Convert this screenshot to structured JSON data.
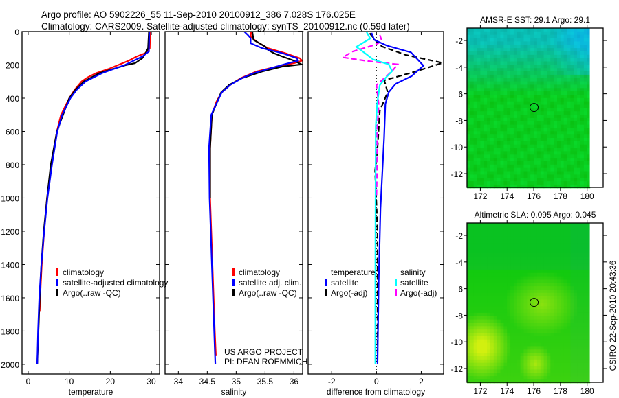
{
  "header": {
    "line1": "Argo profile: AO 5902226_55 11-Sep-2010 20100912_386 7.028S 176.025E",
    "line2": "Climatology: CARS2009. Satellite-adjusted climatology: synTS_20100912.nc (0.59d later)"
  },
  "credit": {
    "line1": "US ARGO PROJECT",
    "line2": "PI: DEAN ROEMMICH"
  },
  "stamp": "CSIRO 22-Sep-2010 20:43:36",
  "colors": {
    "climatology": "#ff0000",
    "satellite": "#0000ff",
    "argo": "#000000",
    "sal_satellite": "#00ffff",
    "sal_argo": "#ff00ff"
  },
  "chart_data": [
    {
      "type": "line",
      "id": "temperature",
      "xlabel": "temperature",
      "ylabel": "",
      "xlim": [
        -1.5,
        32
      ],
      "ylim": [
        2058,
        0
      ],
      "xticks": [
        0,
        10,
        20,
        30
      ],
      "xtick_labels": [
        "0",
        "10",
        "20",
        "30"
      ],
      "yticks": [
        0,
        200,
        400,
        600,
        800,
        1000,
        1200,
        1400,
        1600,
        1800,
        2000
      ],
      "ytick_labels": [
        "0",
        "200",
        "400",
        "600",
        "800",
        "1000",
        "1200",
        "1400",
        "1600",
        "1800",
        "2000"
      ],
      "legend": [
        "climatology",
        "satellite-adjusted climatology",
        "Argo(..raw -QC)"
      ],
      "series": [
        {
          "name": "climatology",
          "color": "#ff0000",
          "depth": [
            0,
            100,
            130,
            150,
            175,
            200,
            225,
            250,
            275,
            300,
            350,
            400,
            500,
            600,
            700,
            800,
            1000,
            1200,
            1400,
            1600,
            1680
          ],
          "values": [
            29.7,
            29.6,
            28.5,
            26.4,
            24.5,
            22,
            19.5,
            16.5,
            14.5,
            13,
            11.3,
            10,
            8,
            7,
            6.3,
            5.6,
            4.6,
            3.9,
            3.3,
            2.9,
            2.8
          ]
        },
        {
          "name": "Argo(..raw -QC)",
          "color": "#000000",
          "depth": [
            0,
            100,
            130,
            160,
            190,
            200,
            250,
            300,
            350,
            400,
            600,
            800,
            1000,
            1200,
            1400,
            1600,
            1800,
            2000
          ],
          "values": [
            29.4,
            29.2,
            28.6,
            27.8,
            26,
            24,
            17.3,
            13.6,
            11.5,
            10,
            7,
            5.5,
            4.6,
            3.8,
            3.2,
            2.8,
            2.5,
            2.2
          ]
        },
        {
          "name": "satellite-adjusted climatology",
          "color": "#0000ff",
          "depth": [
            0,
            120,
            150,
            200,
            250,
            300,
            350,
            400,
            500,
            600,
            800,
            1000,
            1200,
            1400,
            1600,
            1800,
            2000
          ],
          "values": [
            29.5,
            29.4,
            27.8,
            23.6,
            18,
            14,
            11.8,
            10.3,
            8.3,
            7.1,
            5.8,
            4.7,
            3.9,
            3.2,
            2.7,
            2.4,
            2.2
          ]
        }
      ]
    },
    {
      "type": "line",
      "id": "salinity",
      "xlabel": "salinity",
      "xlim": [
        33.77,
        36.15
      ],
      "ylim": [
        2058,
        0
      ],
      "xticks": [
        34,
        34.5,
        35,
        35.5,
        36
      ],
      "xtick_labels": [
        "34",
        "34.5",
        "35",
        "35.5",
        "36"
      ],
      "legend": [
        "climatology",
        "satellite adj. clim.",
        "Argo(..raw -QC)"
      ],
      "series": [
        {
          "name": "climatology",
          "color": "#ff0000",
          "depth": [
            0,
            30,
            60,
            100,
            130,
            160,
            175,
            190,
            210,
            240,
            280,
            320,
            365,
            420,
            500,
            700,
            1000,
            1200,
            1400,
            1600,
            1800,
            1950
          ],
          "values": [
            35.26,
            35.25,
            35.35,
            35.55,
            35.85,
            36.1,
            36.14,
            36.0,
            35.7,
            35.35,
            35.08,
            34.9,
            34.75,
            34.66,
            34.58,
            34.55,
            34.55,
            34.57,
            34.59,
            34.61,
            34.63,
            34.65
          ]
        },
        {
          "name": "Argo(..raw -QC)",
          "color": "#000000",
          "depth": [
            0,
            50,
            90,
            110,
            130,
            150,
            175,
            197,
            210,
            240,
            280,
            320,
            365,
            500,
            700,
            1000
          ],
          "values": [
            35.28,
            35.3,
            35.5,
            35.55,
            35.65,
            35.8,
            36.0,
            36.13,
            35.8,
            35.45,
            35.1,
            34.88,
            34.74,
            34.58,
            34.55,
            34.55
          ]
        },
        {
          "name": "satellite adj. clim.",
          "color": "#0000ff",
          "depth": [
            0,
            20,
            40,
            70,
            100,
            130,
            160,
            175,
            195,
            220,
            250,
            280,
            320,
            365,
            500,
            700,
            1000,
            1200,
            1500,
            1800,
            2000
          ],
          "values": [
            35.14,
            35.2,
            35.25,
            35.25,
            35.45,
            35.8,
            36.05,
            36.07,
            35.85,
            35.6,
            35.3,
            35.1,
            34.9,
            34.75,
            34.57,
            34.53,
            34.54,
            34.56,
            34.59,
            34.62,
            34.64
          ]
        }
      ]
    },
    {
      "type": "line",
      "id": "difference",
      "xlabel": "difference from climatology",
      "xlim": [
        -3.05,
        3.0
      ],
      "ylim": [
        2058,
        0
      ],
      "xticks": [
        -2,
        0,
        2
      ],
      "xtick_labels": [
        "-2",
        "0",
        "2"
      ],
      "legend_groups": [
        {
          "title": "temperature",
          "items": [
            "satellite",
            "Argo(-adj)"
          ]
        },
        {
          "title": "salinity",
          "items": [
            "satellite",
            "Argo(-adj)"
          ]
        }
      ],
      "series": [
        {
          "name": "temperature Argo(-adj)",
          "color": "#000000",
          "dashed": true,
          "depth": [
            10,
            60,
            90,
            140,
            188,
            238,
            293,
            364,
            477,
            700,
            837,
            1200,
            1600,
            2000
          ],
          "values": [
            -0.3,
            0.0,
            0.25,
            1.3,
            2.95,
            1.8,
            0.35,
            0.5,
            0.15,
            0.05,
            -0.06,
            0.05,
            0.05,
            0.05
          ]
        },
        {
          "name": "salinity Argo(-adj)",
          "color": "#ff00ff",
          "dashed": true,
          "depth": [
            21,
            58,
            79,
            121,
            155,
            176,
            197,
            238,
            322,
            435,
            600,
            782,
            1000
          ],
          "values": [
            0.15,
            0.25,
            -0.06,
            -1.08,
            -1.5,
            -0.45,
            0.95,
            0.7,
            0.0,
            0.1,
            0.03,
            0.03,
            0.0
          ]
        },
        {
          "name": "temperature satellite",
          "color": "#0000ff",
          "depth": [
            8,
            50,
            84,
            125,
            205,
            268,
            314,
            364,
            435,
            644,
            1063,
            1500,
            2000
          ],
          "values": [
            -0.22,
            -0.1,
            0.46,
            1.54,
            2.1,
            1.57,
            0.86,
            0.55,
            0.4,
            0.34,
            0.18,
            0.1,
            0.05
          ]
        },
        {
          "name": "salinity satellite",
          "color": "#00ffff",
          "depth": [
            0,
            42,
            92,
            113,
            167,
            197,
            238,
            280,
            322,
            435,
            573,
            1000,
            1500,
            2000
          ],
          "values": [
            -0.45,
            -0.28,
            -0.9,
            -0.68,
            -0.15,
            0.55,
            0.7,
            0.4,
            0.15,
            0.03,
            -0.03,
            -0.04,
            -0.05,
            -0.05
          ]
        }
      ]
    },
    {
      "type": "heatmap",
      "id": "sst-map",
      "title": "AMSR-E SST: 29.1 Argo: 29.1",
      "xlim": [
        171,
        181.2
      ],
      "ylim": [
        -13.03,
        -1.07
      ],
      "xticks": [
        172,
        174,
        176,
        178,
        180
      ],
      "xtick_labels": [
        "172",
        "174",
        "176",
        "178",
        "180"
      ],
      "yticks": [
        -2,
        -4,
        -6,
        -8,
        -10,
        -12
      ],
      "ytick_labels": [
        "-2",
        "-4",
        "-6",
        "-8",
        "-10",
        "-12"
      ],
      "argo_position": [
        176.025,
        -7.028
      ]
    },
    {
      "type": "heatmap",
      "id": "sla-map",
      "title": "Altimetric SLA: 0.095 Argo: 0.045",
      "xlim": [
        171,
        181.2
      ],
      "ylim": [
        -13.03,
        -1.07
      ],
      "xticks": [
        172,
        174,
        176,
        178,
        180
      ],
      "xtick_labels": [
        "172",
        "174",
        "176",
        "178",
        "180"
      ],
      "yticks": [
        -2,
        -4,
        -6,
        -8,
        -10,
        -12
      ],
      "ytick_labels": [
        "-2",
        "-4",
        "-6",
        "-8",
        "-10",
        "-12"
      ],
      "argo_position": [
        176.025,
        -7.028
      ]
    }
  ]
}
